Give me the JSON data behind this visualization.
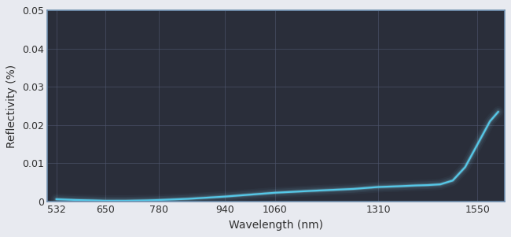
{
  "x_data": [
    532,
    580,
    620,
    650,
    700,
    750,
    780,
    850,
    940,
    1000,
    1060,
    1150,
    1250,
    1310,
    1360,
    1400,
    1430,
    1460,
    1490,
    1520,
    1550,
    1580,
    1600
  ],
  "y_data": [
    0.0006,
    0.0004,
    0.0003,
    0.0002,
    0.0002,
    0.0003,
    0.0004,
    0.0007,
    0.0013,
    0.0018,
    0.0023,
    0.0028,
    0.0033,
    0.0038,
    0.004,
    0.0042,
    0.0043,
    0.0045,
    0.0055,
    0.009,
    0.015,
    0.021,
    0.0235
  ],
  "xlabel": "Wavelength (nm)",
  "ylabel": "Reflectivity (%)",
  "xlim": [
    510,
    1615
  ],
  "ylim": [
    0,
    0.05
  ],
  "xticks": [
    532,
    650,
    780,
    940,
    1060,
    1310,
    1550
  ],
  "yticks": [
    0,
    0.01,
    0.02,
    0.03,
    0.04,
    0.05
  ],
  "ytick_labels": [
    "0",
    "0.01",
    "0.02",
    "0.03",
    "0.04",
    "0.05"
  ],
  "fig_bg_color": "#e8eaf0",
  "plot_bg_color": "#2a2e3a",
  "grid_color": "#505870",
  "line_color": "#55c8e8",
  "glow_color": "#88ddf5",
  "text_color": "#303030",
  "tick_text_color": "#303030",
  "line_width": 1.6,
  "border_color": "#7090b0",
  "xlabel_fontsize": 10,
  "ylabel_fontsize": 10,
  "tick_fontsize": 9
}
